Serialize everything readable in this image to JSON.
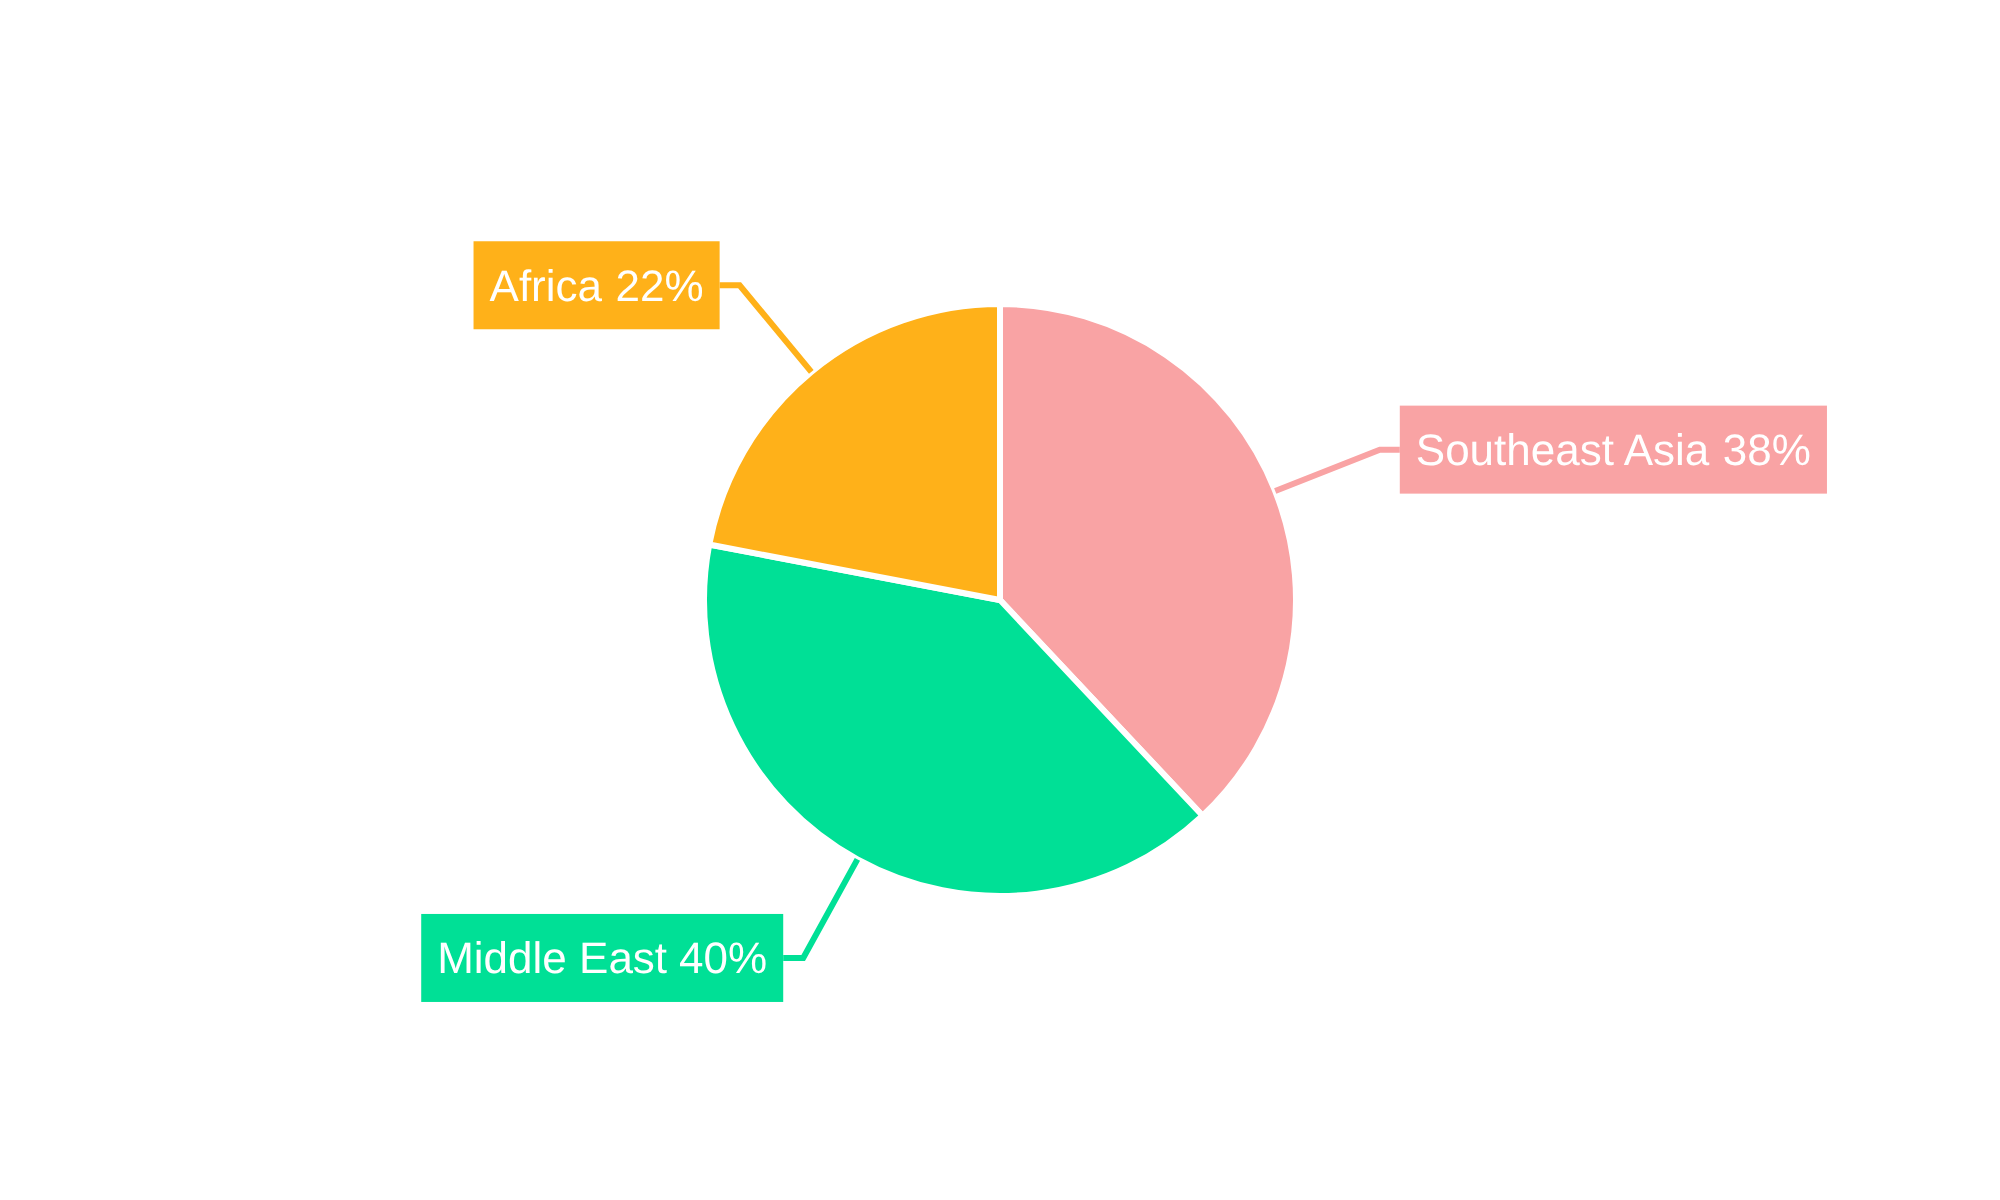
{
  "chart_data": {
    "type": "pie",
    "categories": [
      "Southeast Asia",
      "Middle East",
      "Africa"
    ],
    "values": [
      38,
      40,
      22
    ],
    "value_labels": [
      "38%",
      "40%",
      "22%"
    ],
    "colors": [
      "#f9a3a4",
      "#00e096",
      "#ffb119"
    ]
  }
}
